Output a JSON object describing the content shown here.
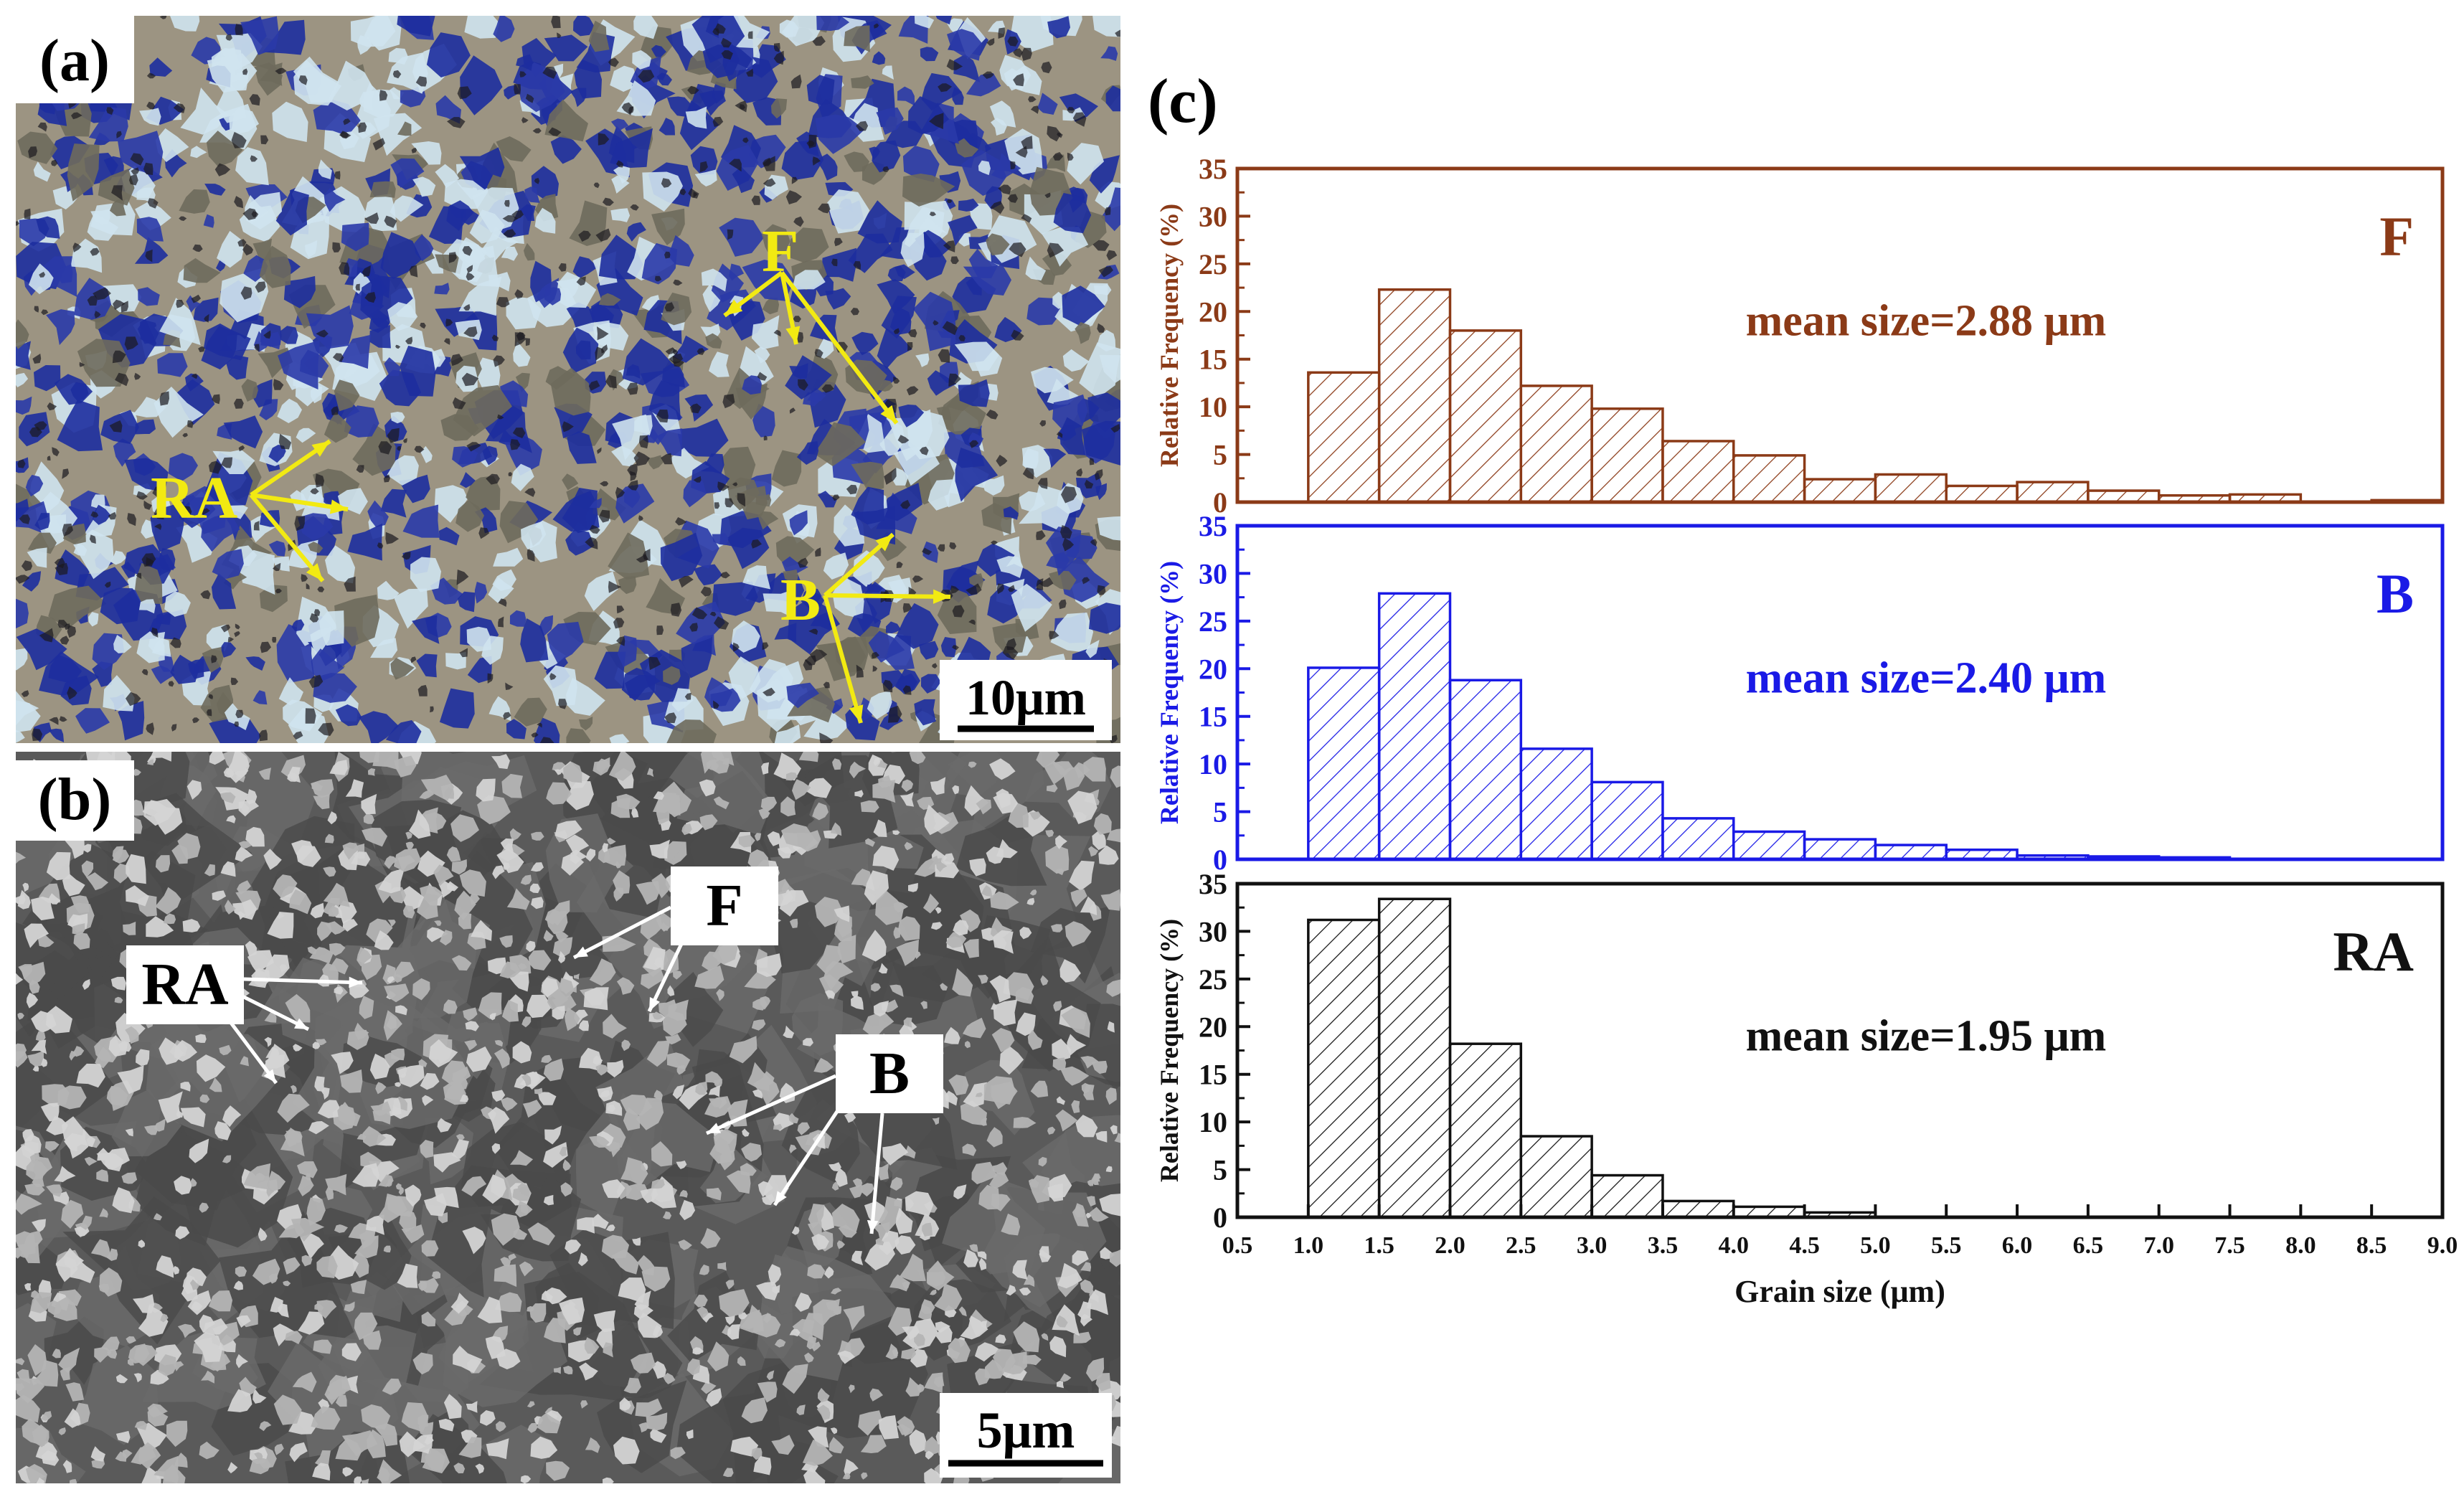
{
  "panels": {
    "a": {
      "label": "(a)",
      "scale_bar": "10μm",
      "annotations": [
        "F",
        "RA",
        "B"
      ],
      "colors": {
        "blue_phase": "#1d2d9e",
        "light_phase": "#cfe3ee",
        "grey_phase": "#9c9482",
        "annotation": "#f2ea12"
      }
    },
    "b": {
      "label": "(b)",
      "scale_bar": "5μm",
      "annotations": [
        "F",
        "RA",
        "B"
      ],
      "colors": {
        "background": "#5a5a5a",
        "grain": "#b4b4b4"
      }
    },
    "c": {
      "label": "(c)"
    }
  },
  "chart_data": [
    {
      "type": "bar",
      "phase_label": "F",
      "annotation": "mean size=2.88 μm",
      "color": "#8b3a17",
      "ylabel": "Relative Frequency (%)",
      "ylim": [
        0,
        35
      ],
      "yticks": [
        "0",
        "5",
        "10",
        "15",
        "20",
        "25",
        "30",
        "35"
      ],
      "xlim": [
        0.5,
        9.0
      ],
      "bin_width": 0.5,
      "bin_starts": [
        1.0,
        1.5,
        2.0,
        2.5,
        3.0,
        3.5,
        4.0,
        4.5,
        5.0,
        5.5,
        6.0,
        6.5,
        7.0,
        7.5,
        8.0,
        8.5
      ],
      "values": [
        13.6,
        22.3,
        18.0,
        12.2,
        9.8,
        6.4,
        4.9,
        2.4,
        2.9,
        1.7,
        2.1,
        1.2,
        0.7,
        0.8,
        0.0,
        0.2
      ]
    },
    {
      "type": "bar",
      "phase_label": "B",
      "annotation": "mean size=2.40 μm",
      "color": "#1a1ae6",
      "ylabel": "Relative Frequency (%)",
      "ylim": [
        0,
        35
      ],
      "yticks": [
        "0",
        "5",
        "10",
        "15",
        "20",
        "25",
        "30",
        "35"
      ],
      "xlim": [
        0.5,
        9.0
      ],
      "bin_width": 0.5,
      "bin_starts": [
        1.0,
        1.5,
        2.0,
        2.5,
        3.0,
        3.5,
        4.0,
        4.5,
        5.0,
        5.5,
        6.0,
        6.5,
        7.0
      ],
      "values": [
        20.1,
        27.9,
        18.8,
        11.6,
        8.1,
        4.3,
        2.9,
        2.1,
        1.5,
        1.0,
        0.4,
        0.3,
        0.2
      ]
    },
    {
      "type": "bar",
      "phase_label": "RA",
      "annotation": "mean size=1.95 μm",
      "color": "#111111",
      "ylabel": "Relative Frequency (%)",
      "ylim": [
        0,
        35
      ],
      "yticks": [
        "0",
        "5",
        "10",
        "15",
        "20",
        "25",
        "30",
        "35"
      ],
      "xlim": [
        0.5,
        9.0
      ],
      "bin_width": 0.5,
      "bin_starts": [
        1.0,
        1.5,
        2.0,
        2.5,
        3.0,
        3.5,
        4.0,
        4.5
      ],
      "values": [
        31.2,
        33.4,
        18.2,
        8.5,
        4.4,
        1.7,
        1.1,
        0.5
      ],
      "xlabel": "Grain size (μm)",
      "xticks": [
        "0.5",
        "1.0",
        "1.5",
        "2.0",
        "2.5",
        "3.0",
        "3.5",
        "4.0",
        "4.5",
        "5.0",
        "5.5",
        "6.0",
        "6.5",
        "7.0",
        "7.5",
        "8.0",
        "8.5",
        "9.0"
      ]
    }
  ]
}
